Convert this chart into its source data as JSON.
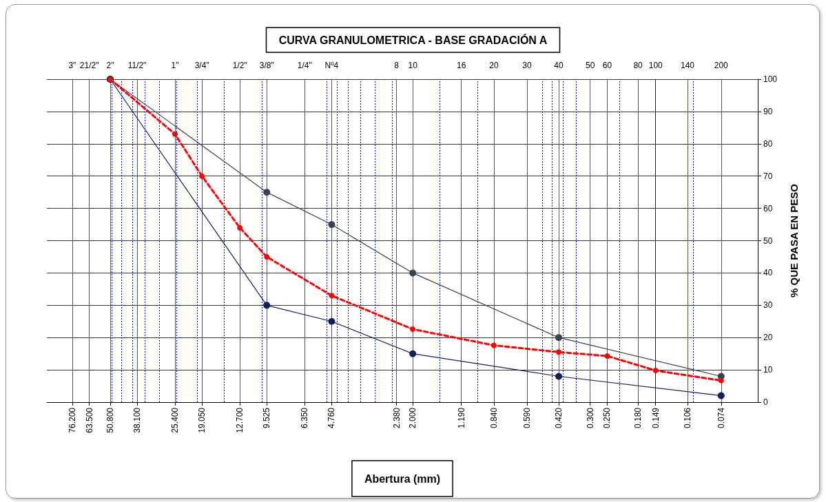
{
  "chart_data": {
    "type": "line",
    "title": "CURVA GRANULOMETRICA - BASE GRADACIÓN A",
    "xlabel": "Abertura (mm)",
    "ylabel": "% QUE PASA EN PESO",
    "xlim": [
      100,
      0.05
    ],
    "log": "x",
    "xticks": [
      {
        "value": 76.2,
        "label": "76.200"
      },
      {
        "value": 63.5,
        "label": "63.500"
      },
      {
        "value": 50.8,
        "label": "50.800"
      },
      {
        "value": 38.1,
        "label": "38.100"
      },
      {
        "value": 25.4,
        "label": "25.400"
      },
      {
        "value": 19.05,
        "label": "19.050"
      },
      {
        "value": 12.7,
        "label": "12.700"
      },
      {
        "value": 9.525,
        "label": "9.525"
      },
      {
        "value": 6.35,
        "label": "6.350"
      },
      {
        "value": 4.76,
        "label": "4.760"
      },
      {
        "value": 2.38,
        "label": "2.380"
      },
      {
        "value": 2,
        "label": "2.000"
      },
      {
        "value": 1.19,
        "label": "1.190"
      },
      {
        "value": 0.84,
        "label": "0.840"
      },
      {
        "value": 0.59,
        "label": "0.590"
      },
      {
        "value": 0.42,
        "label": "0.420"
      },
      {
        "value": 0.3,
        "label": "0.300"
      },
      {
        "value": 0.25,
        "label": "0.250"
      },
      {
        "value": 0.18,
        "label": "0.180"
      },
      {
        "value": 0.149,
        "label": "0.149"
      },
      {
        "value": 0.106,
        "label": "0.106"
      },
      {
        "value": 0.074,
        "label": "0.074"
      }
    ],
    "annotations": [
      "3\"",
      "21/2\"",
      "2\"",
      "11/2\"",
      "1\"",
      "3/4\"",
      "1/2\"",
      "3/8\"",
      "1/4\"",
      "Nº4",
      "8",
      "10",
      "16",
      "20",
      "30",
      "40",
      "50",
      "60",
      "80",
      "100",
      "140",
      "200"
    ],
    "ylim": [
      0,
      100
    ],
    "yticks": [
      0,
      10,
      20,
      30,
      40,
      50,
      60,
      70,
      80,
      90,
      100
    ],
    "grid": true,
    "marker": "circle",
    "series": [
      {
        "color": "#3a4252",
        "line_style": "solid",
        "x": [
          50.8,
          9.525,
          4.76,
          2,
          0.42,
          0.074
        ],
        "values": [
          100,
          65,
          55,
          40,
          20,
          8
        ]
      },
      {
        "color": "#0f2257",
        "line_style": "solid",
        "x": [
          50.8,
          9.525,
          4.76,
          2,
          0.42,
          0.074
        ],
        "values": [
          100,
          30,
          25,
          15,
          8,
          2
        ]
      },
      {
        "color": "#ff0000",
        "line_style": "dashed",
        "x": [
          50.8,
          25.4,
          19.05,
          12.7,
          9.525,
          4.76,
          2,
          0.84,
          0.42,
          0.25,
          0.149,
          0.074
        ],
        "values": [
          100,
          83,
          70,
          54,
          45,
          33,
          22.6,
          17.6,
          15.5,
          14.3,
          9.8,
          6.7
        ]
      }
    ],
    "ref_lines": [
      {
        "axis": "x",
        "value": 50,
        "color": "#0000ff",
        "line_style": "dotted"
      },
      {
        "axis": "x",
        "value": 45,
        "color": "#0000ff",
        "line_style": "dotted"
      },
      {
        "axis": "x",
        "value": 40,
        "color": "#0000ff",
        "line_style": "dotted"
      },
      {
        "axis": "x",
        "value": 35,
        "color": "#0000ff",
        "line_style": "dotted"
      },
      {
        "axis": "x",
        "value": 30,
        "color": "#0000ff",
        "line_style": "dotted"
      },
      {
        "axis": "x",
        "value": 25,
        "color": "#0000ff",
        "line_style": "dotted"
      },
      {
        "axis": "x",
        "value": 20,
        "color": "#0000ff",
        "line_style": "dotted"
      },
      {
        "axis": "x",
        "value": 15,
        "color": "#0000ff",
        "line_style": "dotted"
      },
      {
        "axis": "x",
        "value": 10,
        "color": "#0000ff",
        "line_style": "dotted"
      },
      {
        "axis": "x",
        "value": 5,
        "color": "#0000ff",
        "line_style": "dotted"
      },
      {
        "axis": "x",
        "value": 4.5,
        "color": "#0000ff",
        "line_style": "dotted"
      },
      {
        "axis": "x",
        "value": 4,
        "color": "#0000ff",
        "line_style": "dotted"
      },
      {
        "axis": "x",
        "value": 3.5,
        "color": "#0000ff",
        "line_style": "dotted"
      },
      {
        "axis": "x",
        "value": 3,
        "color": "#0000ff",
        "line_style": "dotted"
      },
      {
        "axis": "x",
        "value": 2.5,
        "color": "#0000ff",
        "line_style": "dotted"
      },
      {
        "axis": "x",
        "value": 1.5,
        "color": "#0000ff",
        "line_style": "dotted"
      },
      {
        "axis": "x",
        "value": 1,
        "color": "#0000ff",
        "line_style": "dotted"
      },
      {
        "axis": "x",
        "value": 0.5,
        "color": "#0000ff",
        "line_style": "dotted"
      },
      {
        "axis": "x",
        "value": 0.45,
        "color": "#0000ff",
        "line_style": "dotted"
      },
      {
        "axis": "x",
        "value": 0.4,
        "color": "#0000ff",
        "line_style": "dotted"
      },
      {
        "axis": "x",
        "value": 0.35,
        "color": "#0000ff",
        "line_style": "dotted"
      },
      {
        "axis": "x",
        "value": 0.22,
        "color": "#0000ff",
        "line_style": "dotted"
      },
      {
        "axis": "x",
        "value": 0.149,
        "color": "#0000ff",
        "line_style": "solid"
      },
      {
        "axis": "x",
        "value": 0.1,
        "color": "#0000ff",
        "line_style": "dotted"
      }
    ]
  }
}
